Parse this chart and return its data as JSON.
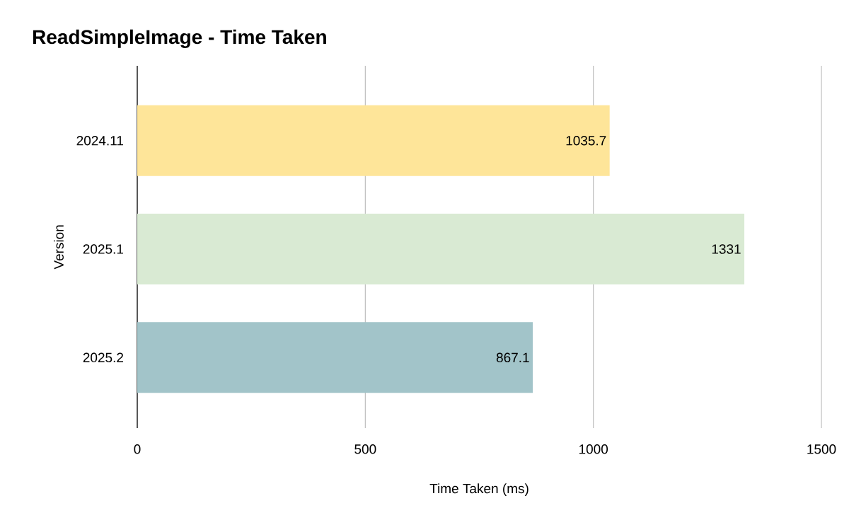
{
  "chart_data": {
    "type": "bar",
    "orientation": "horizontal",
    "title": "ReadSimpleImage - Time Taken",
    "xlabel": "Time Taken (ms)",
    "ylabel": "Version",
    "categories": [
      "2024.11",
      "2025.1",
      "2025.2"
    ],
    "values": [
      1035.7,
      1331,
      867.1
    ],
    "colors": [
      "#fee599",
      "#d9ead3",
      "#a2c4c9"
    ],
    "xlim": [
      0,
      1500
    ],
    "xticks": [
      0,
      500,
      1000,
      1500
    ],
    "grid": "x",
    "data_labels": true
  }
}
